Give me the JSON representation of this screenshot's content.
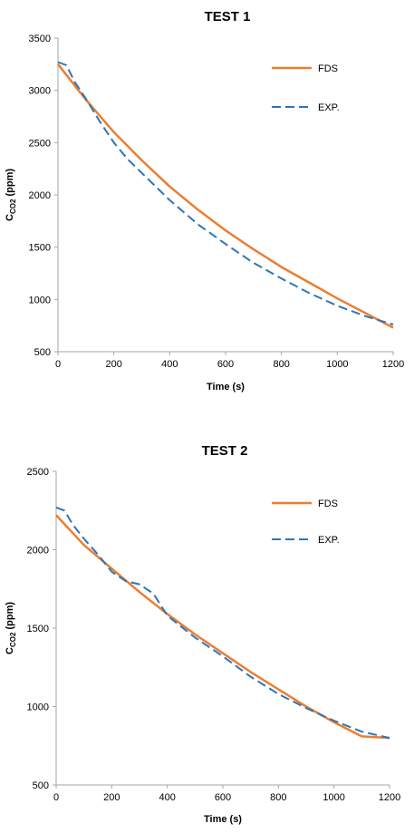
{
  "colors": {
    "fds": "#ED7D31",
    "exp": "#2E75B6",
    "axis": "#A6A6A6"
  },
  "chart_data": [
    {
      "type": "line",
      "title": "TEST 1",
      "xlabel": "Time (s)",
      "ylabel_main": "C",
      "ylabel_sub": "CO2",
      "ylabel_unit": " (ppm)",
      "xlim": [
        0,
        1200
      ],
      "ylim": [
        500,
        3500
      ],
      "xticks": [
        "0",
        "200",
        "400",
        "600",
        "800",
        "1000",
        "1200"
      ],
      "yticks": [
        "500",
        "1000",
        "1500",
        "2000",
        "2500",
        "3000",
        "3500"
      ],
      "grid": false,
      "legend_position": "top-right",
      "series": [
        {
          "name": "FDS",
          "style": "solid",
          "x": [
            0,
            100,
            200,
            300,
            400,
            500,
            600,
            700,
            800,
            900,
            1000,
            1100,
            1200
          ],
          "y": [
            3250,
            2910,
            2600,
            2330,
            2080,
            1860,
            1660,
            1480,
            1310,
            1160,
            1010,
            870,
            730
          ]
        },
        {
          "name": "EXP.",
          "style": "dashed",
          "x": [
            0,
            30,
            60,
            100,
            150,
            200,
            250,
            300,
            400,
            500,
            600,
            700,
            800,
            900,
            1000,
            1100,
            1200
          ],
          "y": [
            3270,
            3240,
            3080,
            2920,
            2700,
            2500,
            2340,
            2210,
            1950,
            1720,
            1530,
            1350,
            1200,
            1060,
            940,
            840,
            760
          ]
        }
      ]
    },
    {
      "type": "line",
      "title": "TEST 2",
      "xlabel": "Time (s)",
      "ylabel_main": "C",
      "ylabel_sub": "CO2",
      "ylabel_unit": " (ppm)",
      "xlim": [
        0,
        1200
      ],
      "ylim": [
        500,
        2500
      ],
      "xticks": [
        "0",
        "200",
        "400",
        "600",
        "800",
        "1000",
        "1200"
      ],
      "yticks": [
        "500",
        "1000",
        "1500",
        "2000",
        "2500"
      ],
      "grid": false,
      "legend_position": "top-right",
      "series": [
        {
          "name": "FDS",
          "style": "solid",
          "x": [
            0,
            100,
            200,
            300,
            400,
            500,
            600,
            700,
            800,
            900,
            1000,
            1100,
            1200
          ],
          "y": [
            2220,
            2030,
            1880,
            1730,
            1590,
            1460,
            1340,
            1220,
            1110,
            1000,
            900,
            810,
            800
          ]
        },
        {
          "name": "EXP.",
          "style": "dashed",
          "x": [
            0,
            30,
            60,
            100,
            150,
            200,
            250,
            300,
            350,
            400,
            500,
            600,
            700,
            800,
            900,
            1000,
            1100,
            1200
          ],
          "y": [
            2270,
            2250,
            2160,
            2070,
            1970,
            1860,
            1800,
            1780,
            1720,
            1580,
            1440,
            1320,
            1190,
            1080,
            990,
            910,
            840,
            800
          ]
        }
      ]
    }
  ]
}
